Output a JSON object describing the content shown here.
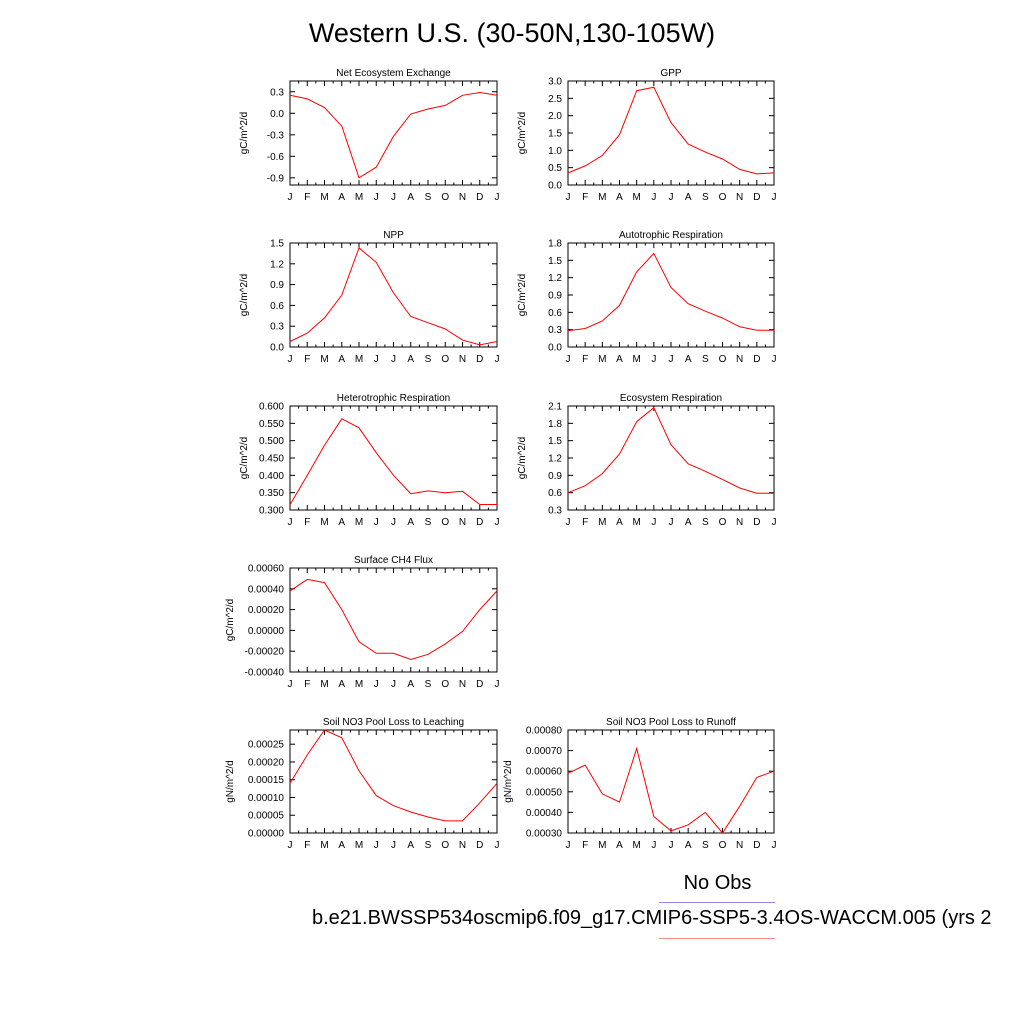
{
  "title": "Western U.S. (30-50N,130-105W)",
  "colors": {
    "model_line": "#ff0000",
    "obs_line": "#8c8cf0",
    "case_line": "#f08c8c",
    "axis": "#000000"
  },
  "legend": {
    "obs_label": "No Obs",
    "case_label": "b.e21.BWSSP534oscmip6.f09_g17.CMIP6-SSP5-3.4OS-WACCM.005 (yrs 2"
  },
  "chart_data": [
    {
      "type": "line",
      "title": "Net Ecosystem Exchange",
      "ylabel": "gC/m^2/d",
      "xlabel": "",
      "categories": [
        "J",
        "F",
        "M",
        "A",
        "M",
        "J",
        "J",
        "A",
        "S",
        "O",
        "N",
        "D",
        "J"
      ],
      "ylim": [
        -1.0,
        0.45
      ],
      "yticks": [
        0.3,
        0.0,
        -0.3,
        -0.6,
        -0.9
      ],
      "ytick_labels": [
        "0.3",
        "0.0",
        "-0.3",
        "-0.6",
        "-0.9"
      ],
      "series": [
        {
          "values": [
            0.25,
            0.2,
            0.08,
            -0.18,
            -0.9,
            -0.75,
            -0.32,
            -0.01,
            0.06,
            0.11,
            0.25,
            0.29,
            0.25
          ]
        }
      ]
    },
    {
      "type": "line",
      "title": "GPP",
      "ylabel": "gC/m^2/d",
      "xlabel": "",
      "categories": [
        "J",
        "F",
        "M",
        "A",
        "M",
        "J",
        "J",
        "A",
        "S",
        "O",
        "N",
        "D",
        "J"
      ],
      "ylim": [
        0.0,
        3.0
      ],
      "yticks": [
        3.0,
        2.5,
        2.0,
        1.5,
        1.0,
        0.5,
        0.0
      ],
      "ytick_labels": [
        "3.0",
        "2.5",
        "2.0",
        "1.5",
        "1.0",
        "0.5",
        "0.0"
      ],
      "series": [
        {
          "values": [
            0.35,
            0.55,
            0.85,
            1.45,
            2.72,
            2.82,
            1.8,
            1.18,
            0.95,
            0.75,
            0.45,
            0.32,
            0.35
          ]
        }
      ]
    },
    {
      "type": "line",
      "title": "NPP",
      "ylabel": "gC/m^2/d",
      "xlabel": "",
      "categories": [
        "J",
        "F",
        "M",
        "A",
        "M",
        "J",
        "J",
        "A",
        "S",
        "O",
        "N",
        "D",
        "J"
      ],
      "ylim": [
        0.0,
        1.5
      ],
      "yticks": [
        1.5,
        1.2,
        0.9,
        0.6,
        0.3,
        0.0
      ],
      "ytick_labels": [
        "1.5",
        "1.2",
        "0.9",
        "0.6",
        "0.3",
        "0.0"
      ],
      "series": [
        {
          "values": [
            0.08,
            0.2,
            0.42,
            0.75,
            1.43,
            1.22,
            0.78,
            0.44,
            0.35,
            0.26,
            0.1,
            0.03,
            0.08
          ]
        }
      ]
    },
    {
      "type": "line",
      "title": "Autotrophic Respiration",
      "ylabel": "gC/m^2/d",
      "xlabel": "",
      "categories": [
        "J",
        "F",
        "M",
        "A",
        "M",
        "J",
        "J",
        "A",
        "S",
        "O",
        "N",
        "D",
        "J"
      ],
      "ylim": [
        0.0,
        1.8
      ],
      "yticks": [
        1.8,
        1.5,
        1.2,
        0.9,
        0.6,
        0.3,
        0.0
      ],
      "ytick_labels": [
        "1.8",
        "1.5",
        "1.2",
        "0.9",
        "0.6",
        "0.3",
        "0.0"
      ],
      "series": [
        {
          "values": [
            0.28,
            0.32,
            0.45,
            0.72,
            1.3,
            1.62,
            1.03,
            0.75,
            0.62,
            0.5,
            0.35,
            0.29,
            0.29
          ]
        }
      ]
    },
    {
      "type": "line",
      "title": "Heterotrophic Respiration",
      "ylabel": "gC/m^2/d",
      "xlabel": "",
      "categories": [
        "J",
        "F",
        "M",
        "A",
        "M",
        "J",
        "J",
        "A",
        "S",
        "O",
        "N",
        "D",
        "J"
      ],
      "ylim": [
        0.3,
        0.6
      ],
      "yticks": [
        0.6,
        0.55,
        0.5,
        0.45,
        0.4,
        0.35,
        0.3
      ],
      "ytick_labels": [
        "0.600",
        "0.550",
        "0.500",
        "0.450",
        "0.400",
        "0.350",
        "0.300"
      ],
      "series": [
        {
          "values": [
            0.315,
            0.4,
            0.487,
            0.563,
            0.537,
            0.465,
            0.4,
            0.347,
            0.355,
            0.35,
            0.354,
            0.316,
            0.316
          ]
        }
      ]
    },
    {
      "type": "line",
      "title": "Ecosystem Respiration",
      "ylabel": "gC/m^2/d",
      "xlabel": "",
      "categories": [
        "J",
        "F",
        "M",
        "A",
        "M",
        "J",
        "J",
        "A",
        "S",
        "O",
        "N",
        "D",
        "J"
      ],
      "ylim": [
        0.3,
        2.1
      ],
      "yticks": [
        2.1,
        1.8,
        1.5,
        1.2,
        0.9,
        0.6,
        0.3
      ],
      "ytick_labels": [
        "2.1",
        "1.8",
        "1.5",
        "1.2",
        "0.9",
        "0.6",
        "0.3"
      ],
      "series": [
        {
          "values": [
            0.6,
            0.72,
            0.93,
            1.27,
            1.83,
            2.07,
            1.43,
            1.1,
            0.97,
            0.83,
            0.68,
            0.59,
            0.59
          ]
        }
      ]
    },
    {
      "type": "line",
      "title": "Surface CH4 Flux",
      "ylabel": "gC/m^2/d",
      "xlabel": "",
      "categories": [
        "J",
        "F",
        "M",
        "A",
        "M",
        "J",
        "J",
        "A",
        "S",
        "O",
        "N",
        "D",
        "J"
      ],
      "ylim": [
        -0.0004,
        0.0006
      ],
      "yticks": [
        0.0006,
        0.0004,
        0.0002,
        0.0,
        -0.0002,
        -0.0004
      ],
      "ytick_labels": [
        "0.00060",
        "0.00040",
        "0.00020",
        "0.00000",
        "-0.00020",
        "-0.00040"
      ],
      "series": [
        {
          "values": [
            0.00038,
            0.00049,
            0.00046,
            0.0002,
            -0.00011,
            -0.00022,
            -0.00022,
            -0.00028,
            -0.00023,
            -0.00013,
            -1e-05,
            0.0002,
            0.00038
          ]
        }
      ]
    },
    {
      "type": "line",
      "title": "Soil NO3 Pool Loss to Leaching",
      "ylabel": "gN/m^2/d",
      "xlabel": "",
      "categories": [
        "J",
        "F",
        "M",
        "A",
        "M",
        "J",
        "J",
        "A",
        "S",
        "O",
        "N",
        "D",
        "J"
      ],
      "ylim": [
        0.0,
        0.00029
      ],
      "yticks": [
        0.00025,
        0.0002,
        0.00015,
        0.0001,
        5e-05,
        0.0
      ],
      "ytick_labels": [
        "0.00025",
        "0.00020",
        "0.00015",
        "0.00010",
        "0.00005",
        "0.00000"
      ],
      "series": [
        {
          "values": [
            0.00014,
            0.00022,
            0.00029,
            0.000268,
            0.000175,
            0.000105,
            7.7e-05,
            5.9e-05,
            4.5e-05,
            3.4e-05,
            3.4e-05,
            8.5e-05,
            0.00014
          ]
        }
      ]
    },
    {
      "type": "line",
      "title": "Soil NO3 Pool Loss to Runoff",
      "ylabel": "gN/m^2/d",
      "xlabel": "",
      "categories": [
        "J",
        "F",
        "M",
        "A",
        "M",
        "J",
        "J",
        "A",
        "S",
        "O",
        "N",
        "D",
        "J"
      ],
      "ylim": [
        0.0003,
        0.0008
      ],
      "yticks": [
        0.0008,
        0.0007,
        0.0006,
        0.0005,
        0.0004,
        0.0003
      ],
      "ytick_labels": [
        "0.00080",
        "0.00070",
        "0.00060",
        "0.00050",
        "0.00040",
        "0.00030"
      ],
      "series": [
        {
          "values": [
            0.00059,
            0.00063,
            0.00049,
            0.00045,
            0.00071,
            0.00038,
            0.00031,
            0.00034,
            0.0004,
            0.0003,
            0.00043,
            0.00057,
            0.0006
          ]
        }
      ]
    }
  ]
}
